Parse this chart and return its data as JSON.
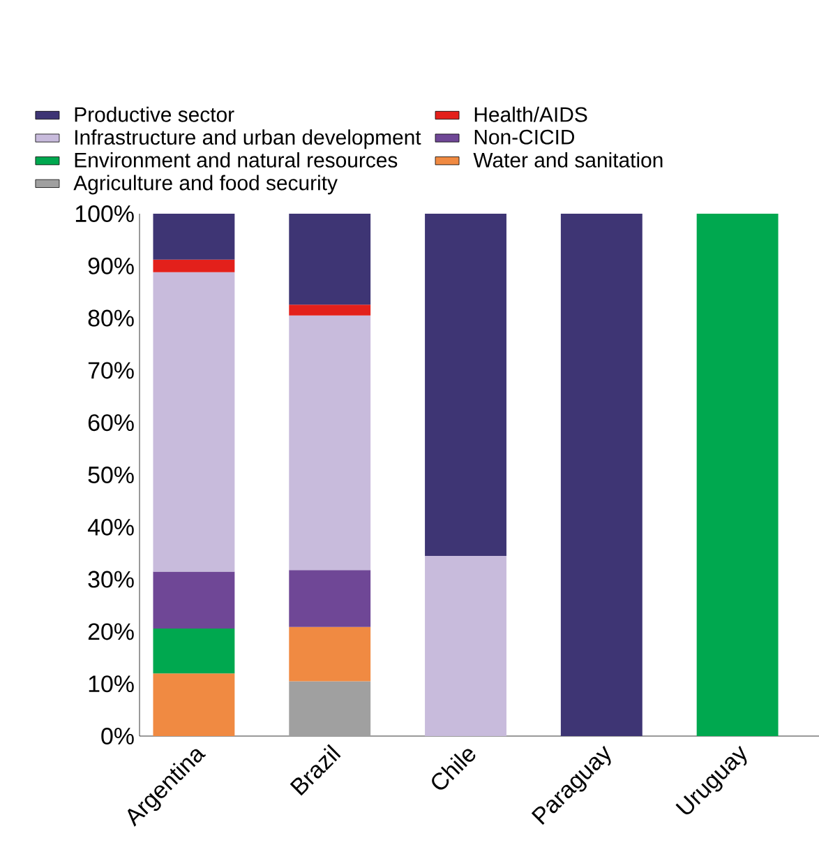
{
  "chart_data": {
    "type": "bar",
    "stacked": true,
    "categories": [
      "Argentina",
      "Brazil",
      "Chile",
      "Paraguay",
      "Uruguay"
    ],
    "series": [
      {
        "name": "Agriculture and food security",
        "color": "#a0a0a0",
        "values": [
          null,
          10.5,
          null,
          null,
          null
        ]
      },
      {
        "name": "Water and sanitation",
        "color": "#f08a42",
        "values": [
          12,
          10.4,
          null,
          null,
          null
        ]
      },
      {
        "name": "Environment and natural resources",
        "color": "#00a84f",
        "values": [
          8.6,
          null,
          null,
          null,
          100
        ]
      },
      {
        "name": "Non-CICID",
        "color": "#6f4796",
        "values": [
          10.9,
          10.9,
          null,
          null,
          null
        ]
      },
      {
        "name": "Infrastructure and urban development",
        "color": "#c8bbdc",
        "values": [
          57.3,
          48.7,
          34.5,
          null,
          null
        ]
      },
      {
        "name": "Health/AIDS",
        "color": "#e3201b",
        "values": [
          2.4,
          2.1,
          null,
          null,
          null
        ]
      },
      {
        "name": "Productive sector",
        "color": "#3e3574",
        "values": [
          8.8,
          17.4,
          65.5,
          100,
          null
        ]
      }
    ],
    "ylim": [
      0,
      100
    ],
    "yticks": [
      {
        "value": 0,
        "label": "0%"
      },
      {
        "value": 10,
        "label": "10%"
      },
      {
        "value": 20,
        "label": "20%"
      },
      {
        "value": 30,
        "label": "30%"
      },
      {
        "value": 40,
        "label": "40%"
      },
      {
        "value": 50,
        "label": "50%"
      },
      {
        "value": 60,
        "label": "60%"
      },
      {
        "value": 70,
        "label": "70%"
      },
      {
        "value": 80,
        "label": "80%"
      },
      {
        "value": 90,
        "label": "90%"
      },
      {
        "value": 100,
        "label": "100%"
      }
    ],
    "legend": "top",
    "grid": false
  }
}
